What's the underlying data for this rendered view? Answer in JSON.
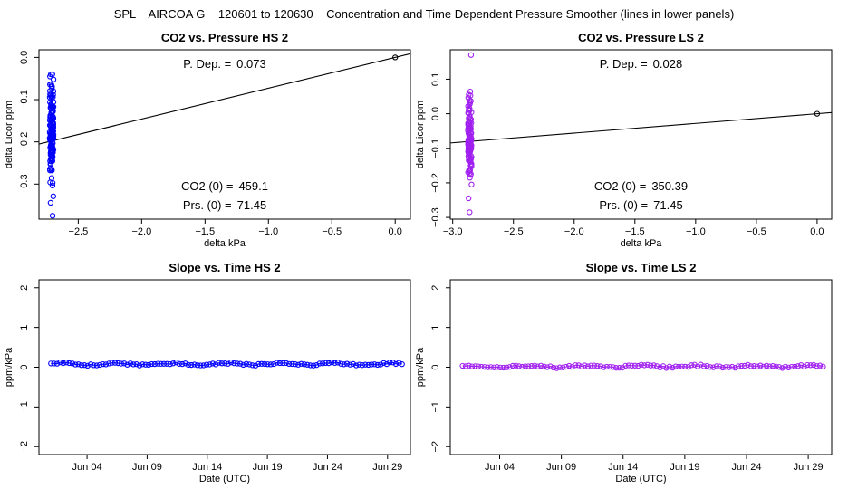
{
  "page_title": "SPL    AIRCOA G    120601 to 120630    Concentration and Time Dependent Pressure Smoother (lines in lower panels)",
  "colors": {
    "hs": "#0000ff",
    "ls": "#a020f0",
    "axis": "#000000"
  },
  "chart_data": [
    {
      "id": "hs_pressure",
      "type": "scatter",
      "title": "CO2 vs. Pressure HS 2",
      "xlabel": "delta kPa",
      "ylabel": "delta Licor ppm",
      "xlim": [
        -2.81,
        0.12
      ],
      "ylim": [
        -0.383,
        0.018
      ],
      "xticks": [
        -2.5,
        -2.0,
        -1.5,
        -1.0,
        -0.5,
        0.0
      ],
      "xtick_labels": [
        "−2.5",
        "−2.0",
        "−1.5",
        "−1.0",
        "−0.5",
        "0.0"
      ],
      "yticks": [
        -0.3,
        -0.2,
        -0.1,
        0.0
      ],
      "ytick_labels": [
        "−0.3",
        "−0.2",
        "−0.1",
        "0.0"
      ],
      "color_key": "hs",
      "cluster": {
        "x_center": -2.71,
        "x_spread": 0.03,
        "y_center": -0.18,
        "y_std": 0.055,
        "y_min": -0.375,
        "y_max": -0.04,
        "count": 160
      },
      "origin_point": [
        0.0,
        0.0
      ],
      "fit_line": {
        "slope": 0.073,
        "intercept": 0.0
      },
      "annotations": {
        "p_dep_label": "P. Dep. =",
        "p_dep": "0.073",
        "co2_label": "CO2 (0) =",
        "co2": "459.1",
        "prs_label": "Prs. (0) =",
        "prs": "71.45"
      }
    },
    {
      "id": "ls_pressure",
      "type": "scatter",
      "title": "CO2 vs. Pressure LS 2",
      "xlabel": "delta kPa",
      "ylabel": "delta Licor ppm",
      "xlim": [
        -3.02,
        0.12
      ],
      "ylim": [
        -0.305,
        0.185
      ],
      "xticks": [
        -3.0,
        -2.5,
        -2.0,
        -1.5,
        -1.0,
        -0.5,
        0.0
      ],
      "xtick_labels": [
        "−3.0",
        "−2.5",
        "−2.0",
        "−1.5",
        "−1.0",
        "−0.5",
        "0.0"
      ],
      "yticks": [
        -0.3,
        -0.2,
        -0.1,
        0.0,
        0.1
      ],
      "ytick_labels": [
        "−0.3",
        "−0.2",
        "−0.1",
        "0.0",
        "0.1"
      ],
      "color_key": "ls",
      "cluster": {
        "x_center": -2.86,
        "x_spread": 0.03,
        "y_center": -0.07,
        "y_std": 0.06,
        "y_min": -0.285,
        "y_max": 0.17,
        "count": 140
      },
      "origin_point": [
        0.0,
        0.0
      ],
      "fit_line": {
        "slope": 0.028,
        "intercept": 0.0
      },
      "annotations": {
        "p_dep_label": "P. Dep. =",
        "p_dep": "0.028",
        "co2_label": "CO2 (0) =",
        "co2": "350.39",
        "prs_label": "Prs. (0) =",
        "prs": "71.45"
      }
    },
    {
      "id": "hs_time",
      "type": "line",
      "title": "Slope vs. Time HS 2",
      "xlabel": "Date (UTC)",
      "ylabel": "ppm/kPa",
      "xlim": [
        0.0,
        30.9
      ],
      "ylim": [
        -2.2,
        2.2
      ],
      "xticks": [
        4,
        9,
        14,
        19,
        24,
        29
      ],
      "xtick_labels": [
        "Jun 04",
        "Jun 09",
        "Jun 14",
        "Jun 19",
        "Jun 24",
        "Jun 29"
      ],
      "yticks": [
        -2,
        -1,
        0,
        1,
        2
      ],
      "ytick_labels": [
        "−2",
        "−1",
        "0",
        "1",
        "2"
      ],
      "color_key": "hs",
      "x_start": 1.0,
      "x_end": 30.2,
      "point_count": 116,
      "series_mean": 0.08,
      "series_amplitude": 0.035
    },
    {
      "id": "ls_time",
      "type": "line",
      "title": "Slope vs. Time LS 2",
      "xlabel": "Date (UTC)",
      "ylabel": "ppm/kPa",
      "xlim": [
        0.0,
        30.9
      ],
      "ylim": [
        -2.2,
        2.2
      ],
      "xticks": [
        4,
        9,
        14,
        19,
        24,
        29
      ],
      "xtick_labels": [
        "Jun 04",
        "Jun 09",
        "Jun 14",
        "Jun 19",
        "Jun 24",
        "Jun 29"
      ],
      "yticks": [
        -2,
        -1,
        0,
        1,
        2
      ],
      "ytick_labels": [
        "−2",
        "−1",
        "0",
        "1",
        "2"
      ],
      "color_key": "ls",
      "x_start": 1.0,
      "x_end": 30.2,
      "point_count": 116,
      "series_mean": 0.02,
      "series_amplitude": 0.035
    }
  ]
}
